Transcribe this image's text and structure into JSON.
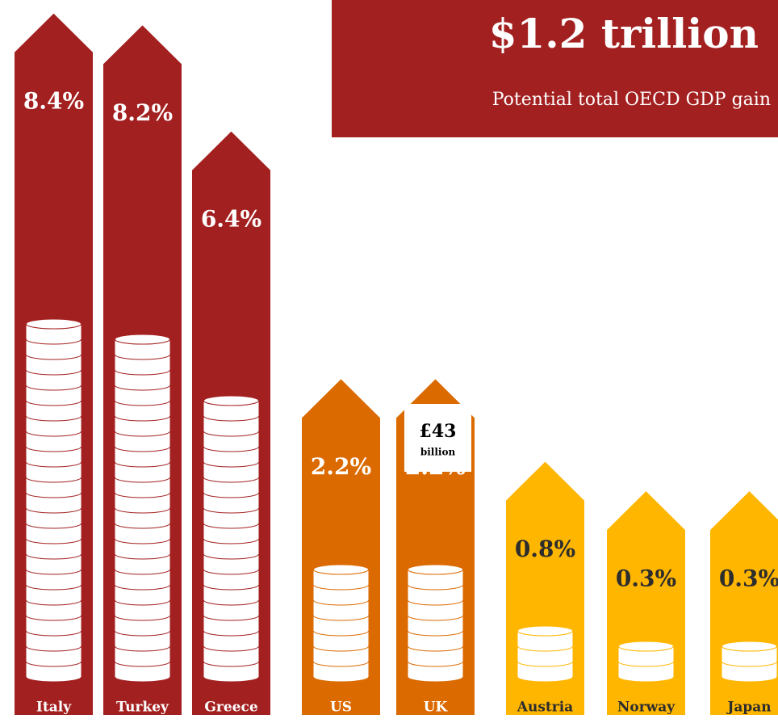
{
  "chart_data": {
    "type": "bar",
    "title": "$1.2 trillion",
    "subtitle": "Potential total OECD GDP gain",
    "categories": [
      "Italy",
      "Turkey",
      "Greece",
      "US",
      "UK",
      "Austria",
      "Norway",
      "Japan"
    ],
    "values": [
      8.4,
      8.2,
      6.4,
      2.2,
      2.2,
      0.8,
      0.3,
      0.3
    ],
    "value_labels": [
      "8.4%",
      "8.2%",
      "6.4%",
      "2.2%",
      "2.2%",
      "0.8%",
      "0.3%",
      "0.3%"
    ],
    "colors": [
      "#a32020",
      "#a32020",
      "#a32020",
      "#db6a00",
      "#db6a00",
      "#ffb600",
      "#ffb600",
      "#ffb600"
    ],
    "annotation": "£43",
    "annotation_detail": "billion"
  }
}
